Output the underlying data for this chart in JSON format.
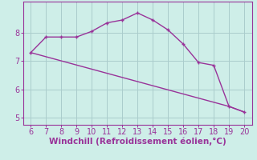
{
  "xlabel": "Windchill (Refroidissement éolien,°C)",
  "background_color": "#ceeee8",
  "line_color": "#993399",
  "grid_color": "#aacccc",
  "xlim": [
    5.5,
    20.5
  ],
  "ylim": [
    4.75,
    9.1
  ],
  "xticks": [
    6,
    7,
    8,
    9,
    10,
    11,
    12,
    13,
    14,
    15,
    16,
    17,
    18,
    19,
    20
  ],
  "yticks": [
    5,
    6,
    7,
    8
  ],
  "curve1_x": [
    6,
    7,
    8,
    9,
    10,
    11,
    12,
    13,
    14,
    15,
    16,
    17,
    18,
    19,
    20
  ],
  "curve1_y": [
    7.3,
    7.85,
    7.85,
    7.85,
    8.05,
    8.35,
    8.45,
    8.7,
    8.45,
    8.1,
    7.6,
    6.95,
    6.85,
    5.4,
    5.2
  ],
  "curve2_x": [
    6,
    19,
    20
  ],
  "curve2_y": [
    7.3,
    5.4,
    5.2
  ],
  "xlabel_fontsize": 7.5,
  "tick_fontsize": 7,
  "linewidth": 1.0,
  "marker_size": 3.5
}
